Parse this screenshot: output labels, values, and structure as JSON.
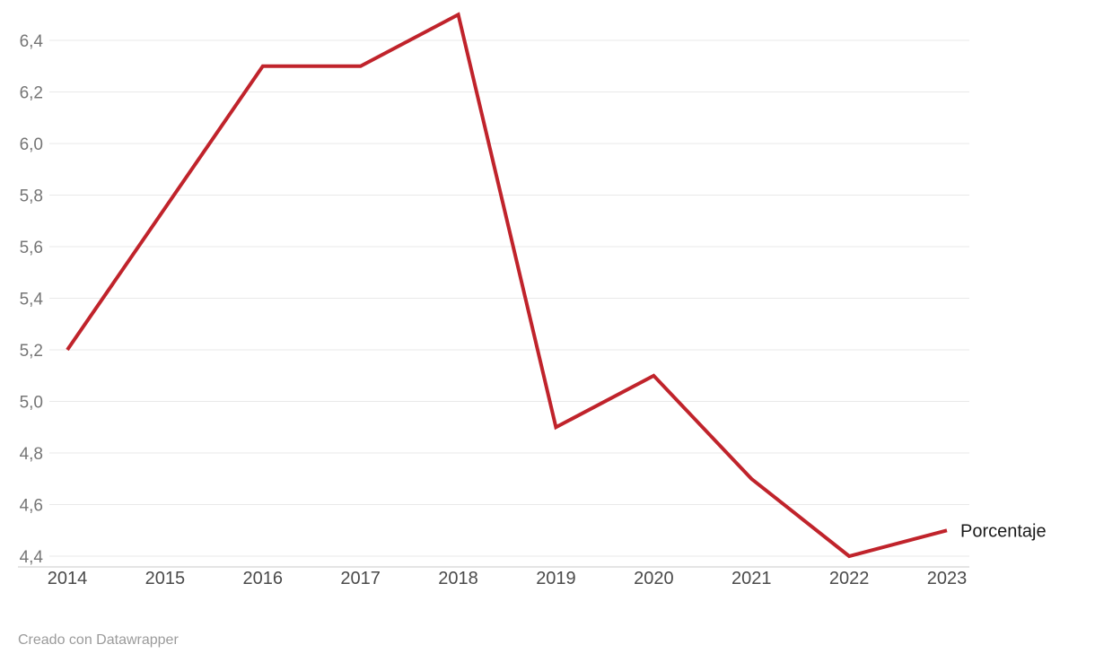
{
  "chart_data": {
    "type": "line",
    "title": "",
    "xlabel": "",
    "ylabel": "",
    "x": [
      "2014",
      "2015",
      "2016",
      "2017",
      "2018",
      "2019",
      "2020",
      "2021",
      "2022",
      "2023"
    ],
    "series": [
      {
        "name": "Porcentaje",
        "values": [
          5.2,
          5.75,
          6.3,
          6.3,
          6.5,
          4.9,
          5.1,
          4.7,
          4.4,
          4.5
        ],
        "color": "#c0232b"
      }
    ],
    "ylim": [
      4.4,
      6.5
    ],
    "yticks": [
      4.4,
      4.6,
      4.8,
      5.0,
      5.2,
      5.4,
      5.6,
      5.8,
      6.0,
      6.2,
      6.4
    ],
    "ytick_labels": [
      "4,4",
      "4,6",
      "4,8",
      "5,0",
      "5,2",
      "5,4",
      "5,6",
      "5,8",
      "6,0",
      "6,2",
      "6,4"
    ],
    "grid": true,
    "legend_position": "end-of-line-label"
  },
  "footer": {
    "credit": "Creado con Datawrapper"
  },
  "colors": {
    "line": "#c0232b",
    "gridline": "#e9e9e9",
    "baseline": "#c9c9c9",
    "ytick_text": "#757575",
    "xtick_text": "#4a4a4a",
    "series_label_text": "#1a1a1a",
    "footer_text": "#9b9b9b",
    "background": "#ffffff"
  }
}
